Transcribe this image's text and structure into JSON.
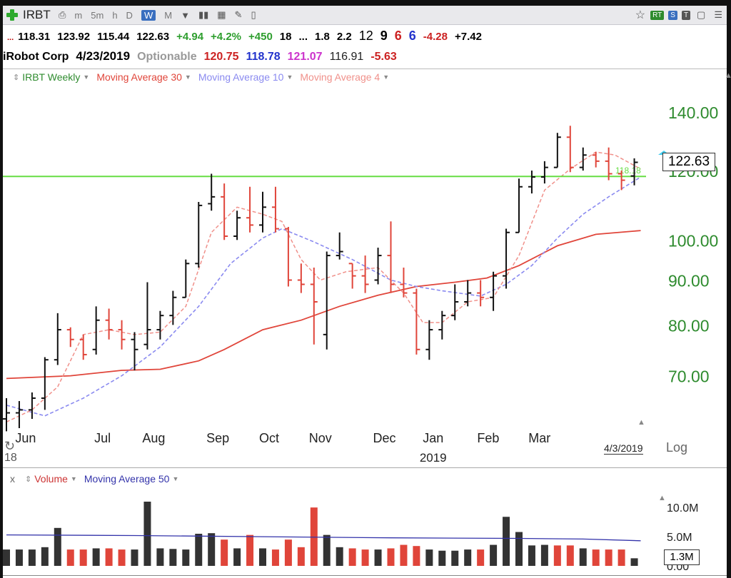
{
  "toolbar": {
    "symbol": "IRBT",
    "periods": [
      "m",
      "5m",
      "h",
      "D",
      "W",
      "M"
    ],
    "active_period": "W",
    "badges": [
      "RT",
      "S",
      "T"
    ]
  },
  "quote_line1": {
    "dots": "...",
    "open": "118.31",
    "high": "123.92",
    "low": "115.44",
    "close": "122.63",
    "change": "+4.94",
    "change_pct": "+4.2%",
    "rank": "+450",
    "v1": "18",
    "v2": "...",
    "v3": "1.8",
    "v4": "2.2",
    "n1": "12",
    "n2": "9",
    "n3": "6",
    "n4": "6",
    "neg": "-4.28",
    "pos": "+7.42"
  },
  "quote_line2": {
    "company": "iRobot Corp",
    "date": "4/23/2019",
    "optionable": "Optionable",
    "v1": "120.75",
    "v2": "118.78",
    "v3": "121.07",
    "v4": "116.91",
    "v5": "-5.63"
  },
  "legend_price": {
    "items": [
      {
        "label": "IRBT Weekly",
        "color": "#2e8b2e"
      },
      {
        "label": "Moving Average 30",
        "color": "#e0453a"
      },
      {
        "label": "Moving Average 10",
        "color": "#8a8af0"
      },
      {
        "label": "Moving Average 4",
        "color": "#f0908a"
      }
    ]
  },
  "legend_volume": {
    "close_x": "x",
    "items": [
      {
        "label": "Volume",
        "color": "#cc3333"
      },
      {
        "label": "Moving Average 50",
        "color": "#3333aa"
      }
    ]
  },
  "last_price": "122.63",
  "line_label": "118.18",
  "volume_last": "1.3M",
  "scale_mode": "Log",
  "date_marker": "4/3/2019",
  "year_start": "18",
  "colors": {
    "up_bar": "#111111",
    "down_bar": "#e0453a",
    "ma30": "#e0453a",
    "ma10": "#8a8af0",
    "ma4": "#f0908a",
    "hline": "#66dd44",
    "axis_text": "#2e8b2e",
    "vol_ma": "#3333aa",
    "vol_up": "#333333",
    "vol_down": "#e0453a"
  },
  "chart_data": [
    {
      "type": "ohlc",
      "title": "IRBT Weekly",
      "scale": "log",
      "yticks": [
        70,
        80,
        90,
        100,
        120,
        140
      ],
      "ytick_labels": [
        "70.00",
        "80.00",
        "90.00",
        "100.00",
        "120.00",
        "140.00"
      ],
      "ylim": [
        61,
        150
      ],
      "horizontal_line": 118.18,
      "month_labels": [
        "Jun",
        "Jul",
        "Aug",
        "Sep",
        "Oct",
        "Nov",
        "Dec",
        "Jan",
        "Feb",
        "Mar"
      ],
      "month_bar_index": [
        1.5,
        7.5,
        11.5,
        16.5,
        20.5,
        24.5,
        29.5,
        33.3,
        37.6,
        41.6
      ],
      "year_label": "2019",
      "year_bar_index": 33.3,
      "bars": [
        {
          "o": 62.5,
          "h": 66,
          "l": 60.5,
          "c": 63.5,
          "up": true
        },
        {
          "o": 63.5,
          "h": 65.5,
          "l": 61,
          "c": 64,
          "up": true
        },
        {
          "o": 64,
          "h": 67,
          "l": 62.5,
          "c": 66,
          "up": true
        },
        {
          "o": 66,
          "h": 73.5,
          "l": 64,
          "c": 73,
          "up": true
        },
        {
          "o": 73,
          "h": 82.5,
          "l": 72,
          "c": 79,
          "up": true
        },
        {
          "o": 79,
          "h": 79.5,
          "l": 75.5,
          "c": 77,
          "up": false
        },
        {
          "o": 77,
          "h": 78,
          "l": 73,
          "c": 74,
          "up": false
        },
        {
          "o": 75,
          "h": 84,
          "l": 74,
          "c": 81,
          "up": true
        },
        {
          "o": 81,
          "h": 83.5,
          "l": 77,
          "c": 79,
          "up": false
        },
        {
          "o": 79,
          "h": 81,
          "l": 75,
          "c": 77,
          "up": false
        },
        {
          "o": 77,
          "h": 78.5,
          "l": 71,
          "c": 75,
          "up": true
        },
        {
          "o": 76,
          "h": 89.5,
          "l": 75,
          "c": 79,
          "up": true
        },
        {
          "o": 79,
          "h": 83,
          "l": 77,
          "c": 82,
          "up": true
        },
        {
          "o": 82,
          "h": 87.5,
          "l": 80,
          "c": 86,
          "up": true
        },
        {
          "o": 86,
          "h": 95,
          "l": 86,
          "c": 94,
          "up": true
        },
        {
          "o": 94,
          "h": 110.5,
          "l": 93,
          "c": 109.5,
          "up": true
        },
        {
          "o": 110,
          "h": 119,
          "l": 108,
          "c": 112,
          "up": true
        },
        {
          "o": 112,
          "h": 116,
          "l": 100,
          "c": 101,
          "up": false
        },
        {
          "o": 101,
          "h": 108,
          "l": 100,
          "c": 106,
          "up": true
        },
        {
          "o": 106,
          "h": 115,
          "l": 102,
          "c": 104,
          "up": false
        },
        {
          "o": 104,
          "h": 113.5,
          "l": 102,
          "c": 109,
          "up": true
        },
        {
          "o": 109,
          "h": 115,
          "l": 102,
          "c": 103,
          "up": false
        },
        {
          "o": 103,
          "h": 103.5,
          "l": 88.5,
          "c": 90,
          "up": false
        },
        {
          "o": 90,
          "h": 94,
          "l": 87,
          "c": 89,
          "up": false
        },
        {
          "o": 89,
          "h": 93,
          "l": 76,
          "c": 85,
          "up": false
        },
        {
          "o": 78,
          "h": 97,
          "l": 75,
          "c": 96,
          "up": true
        },
        {
          "o": 96,
          "h": 102,
          "l": 95,
          "c": 97,
          "up": true
        },
        {
          "o": 94,
          "h": 94,
          "l": 88,
          "c": 91,
          "up": false
        },
        {
          "o": 91,
          "h": 96,
          "l": 87,
          "c": 89,
          "up": false
        },
        {
          "o": 90,
          "h": 98,
          "l": 89,
          "c": 96,
          "up": true
        },
        {
          "o": 96,
          "h": 105,
          "l": 87,
          "c": 89,
          "up": false
        },
        {
          "o": 89,
          "h": 93,
          "l": 86,
          "c": 87,
          "up": false
        },
        {
          "o": 87,
          "h": 88,
          "l": 74,
          "c": 75,
          "up": false
        },
        {
          "o": 75,
          "h": 81,
          "l": 73,
          "c": 79,
          "up": true
        },
        {
          "o": 79,
          "h": 83,
          "l": 77,
          "c": 82,
          "up": true
        },
        {
          "o": 82,
          "h": 89,
          "l": 81,
          "c": 85,
          "up": true
        },
        {
          "o": 85,
          "h": 90,
          "l": 84,
          "c": 87,
          "up": true
        },
        {
          "o": 87,
          "h": 90,
          "l": 84,
          "c": 86,
          "up": false
        },
        {
          "o": 86,
          "h": 92,
          "l": 83,
          "c": 91,
          "up": true
        },
        {
          "o": 91,
          "h": 103,
          "l": 88,
          "c": 102,
          "up": true
        },
        {
          "o": 102,
          "h": 117.5,
          "l": 102,
          "c": 115,
          "up": true
        },
        {
          "o": 115,
          "h": 120,
          "l": 113,
          "c": 118,
          "up": true
        },
        {
          "o": 118,
          "h": 123,
          "l": 116,
          "c": 121,
          "up": true
        },
        {
          "o": 121,
          "h": 132.5,
          "l": 121,
          "c": 131,
          "up": true
        },
        {
          "o": 131,
          "h": 135,
          "l": 119.5,
          "c": 121,
          "up": false
        },
        {
          "o": 121,
          "h": 127.5,
          "l": 120,
          "c": 125,
          "up": true
        },
        {
          "o": 125,
          "h": 126,
          "l": 121,
          "c": 123,
          "up": false
        },
        {
          "o": 123,
          "h": 127.5,
          "l": 117,
          "c": 119,
          "up": false
        },
        {
          "o": 119,
          "h": 120,
          "l": 114,
          "c": 117,
          "up": false
        },
        {
          "o": 118.31,
          "h": 123.92,
          "l": 115.44,
          "c": 122.63,
          "up": true
        }
      ],
      "ma30": [
        {
          "i": 0,
          "v": 69.5
        },
        {
          "i": 5,
          "v": 70
        },
        {
          "i": 9,
          "v": 71
        },
        {
          "i": 12,
          "v": 71.2
        },
        {
          "i": 15,
          "v": 72.8
        },
        {
          "i": 17,
          "v": 75
        },
        {
          "i": 20,
          "v": 79
        },
        {
          "i": 23,
          "v": 81
        },
        {
          "i": 26,
          "v": 84
        },
        {
          "i": 29,
          "v": 86.5
        },
        {
          "i": 32,
          "v": 88.5
        },
        {
          "i": 35,
          "v": 89.5
        },
        {
          "i": 37.5,
          "v": 90.5
        },
        {
          "i": 40,
          "v": 93.5
        },
        {
          "i": 43,
          "v": 98.5
        },
        {
          "i": 46,
          "v": 101.5
        },
        {
          "i": 49.5,
          "v": 102.5
        }
      ],
      "ma10": [
        {
          "i": 0,
          "v": 64.8
        },
        {
          "i": 3,
          "v": 63
        },
        {
          "i": 6,
          "v": 66
        },
        {
          "i": 9,
          "v": 70
        },
        {
          "i": 12,
          "v": 75.5
        },
        {
          "i": 15,
          "v": 84
        },
        {
          "i": 17.5,
          "v": 94
        },
        {
          "i": 20,
          "v": 100.5
        },
        {
          "i": 21.5,
          "v": 103
        },
        {
          "i": 24,
          "v": 99.5
        },
        {
          "i": 27,
          "v": 95
        },
        {
          "i": 30,
          "v": 90
        },
        {
          "i": 32,
          "v": 88.5
        },
        {
          "i": 34,
          "v": 87.5
        },
        {
          "i": 37,
          "v": 86.3
        },
        {
          "i": 39,
          "v": 89
        },
        {
          "i": 41,
          "v": 93.5
        },
        {
          "i": 43,
          "v": 100.5
        },
        {
          "i": 45,
          "v": 107
        },
        {
          "i": 47,
          "v": 112
        },
        {
          "i": 49.5,
          "v": 118
        }
      ],
      "ma4": [
        {
          "i": 0,
          "v": 62
        },
        {
          "i": 2,
          "v": 64
        },
        {
          "i": 4,
          "v": 68
        },
        {
          "i": 6,
          "v": 78
        },
        {
          "i": 8,
          "v": 79
        },
        {
          "i": 10,
          "v": 78
        },
        {
          "i": 12,
          "v": 78.5
        },
        {
          "i": 14,
          "v": 84
        },
        {
          "i": 16,
          "v": 102
        },
        {
          "i": 18,
          "v": 109
        },
        {
          "i": 20,
          "v": 107
        },
        {
          "i": 21.5,
          "v": 105
        },
        {
          "i": 23,
          "v": 95
        },
        {
          "i": 24.5,
          "v": 90
        },
        {
          "i": 26.5,
          "v": 92
        },
        {
          "i": 29,
          "v": 93
        },
        {
          "i": 31,
          "v": 87
        },
        {
          "i": 32.5,
          "v": 80.5
        },
        {
          "i": 34,
          "v": 80.5
        },
        {
          "i": 36,
          "v": 85
        },
        {
          "i": 38,
          "v": 86
        },
        {
          "i": 40,
          "v": 96
        },
        {
          "i": 42,
          "v": 114
        },
        {
          "i": 44,
          "v": 120.5
        },
        {
          "i": 46,
          "v": 126
        },
        {
          "i": 47.5,
          "v": 125
        },
        {
          "i": 49.5,
          "v": 120.5
        }
      ]
    },
    {
      "type": "bar",
      "title": "Volume",
      "yticks_labels": [
        "10.0M",
        "5.0M",
        "0.00"
      ],
      "ytick_values": [
        10,
        5,
        0
      ],
      "ylim": [
        0,
        13.2
      ],
      "unit": "M",
      "values": [
        2.8,
        2.8,
        2.8,
        3.2,
        6.5,
        2.8,
        2.8,
        3.0,
        3.0,
        2.8,
        2.8,
        11.0,
        3.0,
        2.9,
        2.8,
        5.5,
        5.6,
        4.5,
        3.0,
        5.3,
        3.0,
        2.8,
        4.5,
        3.2,
        10.0,
        5.3,
        3.2,
        3.0,
        2.8,
        2.8,
        3.0,
        3.6,
        3.4,
        2.8,
        2.6,
        2.6,
        2.8,
        2.8,
        3.6,
        8.4,
        5.8,
        3.5,
        3.6,
        3.5,
        3.5,
        3.0,
        2.8,
        2.8,
        2.8,
        1.3
      ],
      "up": [
        true,
        true,
        true,
        true,
        true,
        false,
        false,
        true,
        false,
        false,
        true,
        true,
        true,
        true,
        true,
        true,
        true,
        false,
        true,
        false,
        true,
        false,
        false,
        false,
        false,
        true,
        true,
        false,
        false,
        true,
        false,
        false,
        false,
        true,
        true,
        true,
        true,
        false,
        true,
        true,
        true,
        true,
        true,
        false,
        false,
        true,
        false,
        false,
        false,
        true
      ],
      "ma50": [
        {
          "i": 0,
          "v": 5.3
        },
        {
          "i": 10,
          "v": 5.2
        },
        {
          "i": 20,
          "v": 5.0
        },
        {
          "i": 30,
          "v": 4.8
        },
        {
          "i": 40,
          "v": 4.7
        },
        {
          "i": 45,
          "v": 4.6
        },
        {
          "i": 49.5,
          "v": 4.3
        }
      ]
    }
  ]
}
